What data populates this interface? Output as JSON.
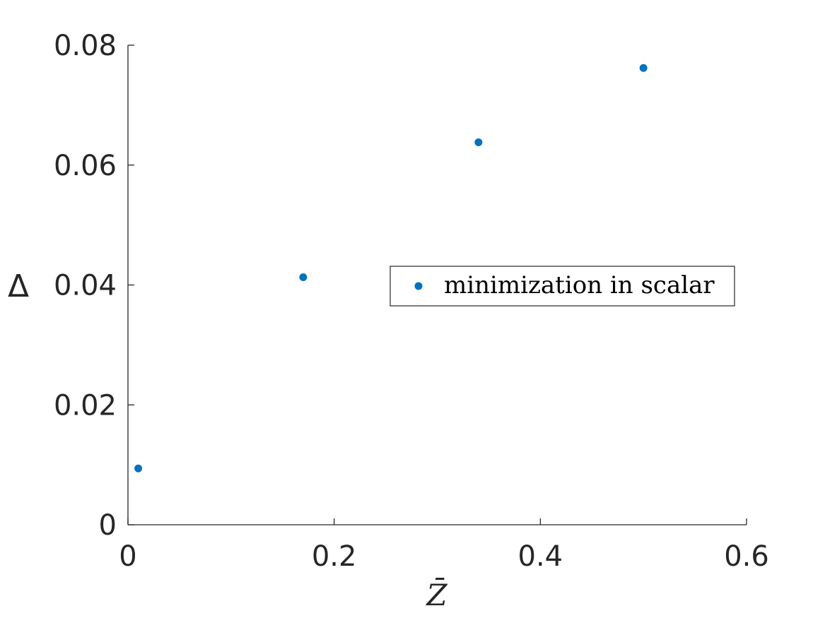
{
  "chart_data": {
    "type": "scatter",
    "title": "",
    "xlabel": "Z̄",
    "ylabel": "Δ",
    "xlim": [
      0,
      0.6
    ],
    "ylim": [
      0,
      0.08
    ],
    "xticks": [
      0,
      0.2,
      0.4,
      0.6
    ],
    "xtick_labels": [
      "0",
      "0.2",
      "0.4",
      "0.6"
    ],
    "yticks": [
      0,
      0.02,
      0.04,
      0.06,
      0.08
    ],
    "ytick_labels": [
      "0",
      "0.02",
      "0.04",
      "0.06",
      "0.08"
    ],
    "grid": false,
    "legend_position": "right",
    "series": [
      {
        "name": "minimization in scalar",
        "color": "#0072BD",
        "marker": "filled-circle",
        "x": [
          0.01,
          0.17,
          0.34,
          0.5
        ],
        "y": [
          0.0094,
          0.0413,
          0.0638,
          0.0762
        ]
      }
    ]
  }
}
